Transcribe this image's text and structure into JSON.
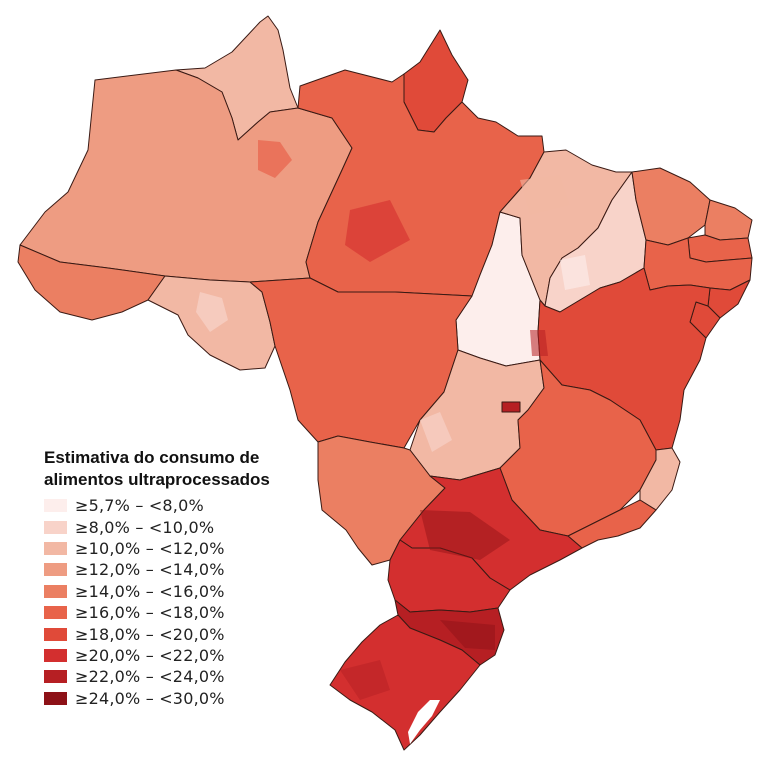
{
  "legend": {
    "title_line1": "Estimativa do consumo de",
    "title_line2": "alimentos ultraprocessados",
    "classes": [
      {
        "label": "≥5,7% – <8,0%",
        "color": "#fdeeec"
      },
      {
        "label": "≥8,0% – <10,0%",
        "color": "#f8d3c9"
      },
      {
        "label": "≥10,0% – <12,0%",
        "color": "#f2b8a4"
      },
      {
        "label": "≥12,0% – <14,0%",
        "color": "#ee9c82"
      },
      {
        "label": "≥14,0% – <16,0%",
        "color": "#eb7f62"
      },
      {
        "label": "≥16,0% – <18,0%",
        "color": "#e8634a"
      },
      {
        "label": "≥18,0% – <20,0%",
        "color": "#e04a39"
      },
      {
        "label": "≥20,0% – <22,0%",
        "color": "#d32f2f"
      },
      {
        "label": "≥22,0% – <24,0%",
        "color": "#b61f23"
      },
      {
        "label": "≥24,0% – <30,0%",
        "color": "#8d1117"
      }
    ]
  },
  "states": [
    {
      "uf": "RR",
      "class": 2
    },
    {
      "uf": "AP",
      "class": 6
    },
    {
      "uf": "AM",
      "class": 3
    },
    {
      "uf": "PA",
      "class": 5
    },
    {
      "uf": "AC",
      "class": 4
    },
    {
      "uf": "RO",
      "class": 2
    },
    {
      "uf": "MT",
      "class": 5
    },
    {
      "uf": "TO",
      "class": 0
    },
    {
      "uf": "MA",
      "class": 2
    },
    {
      "uf": "PI",
      "class": 1
    },
    {
      "uf": "CE",
      "class": 4
    },
    {
      "uf": "RN",
      "class": 4
    },
    {
      "uf": "PB",
      "class": 5
    },
    {
      "uf": "PE",
      "class": 5
    },
    {
      "uf": "AL",
      "class": 6
    },
    {
      "uf": "SE",
      "class": 6
    },
    {
      "uf": "BA",
      "class": 6
    },
    {
      "uf": "GO",
      "class": 2
    },
    {
      "uf": "DF",
      "class": 8
    },
    {
      "uf": "MG",
      "class": 5
    },
    {
      "uf": "ES",
      "class": 2
    },
    {
      "uf": "RJ",
      "class": 5
    },
    {
      "uf": "MS",
      "class": 4
    },
    {
      "uf": "SP",
      "class": 7
    },
    {
      "uf": "PR",
      "class": 7
    },
    {
      "uf": "SC",
      "class": 8
    },
    {
      "uf": "RS",
      "class": 7
    }
  ]
}
